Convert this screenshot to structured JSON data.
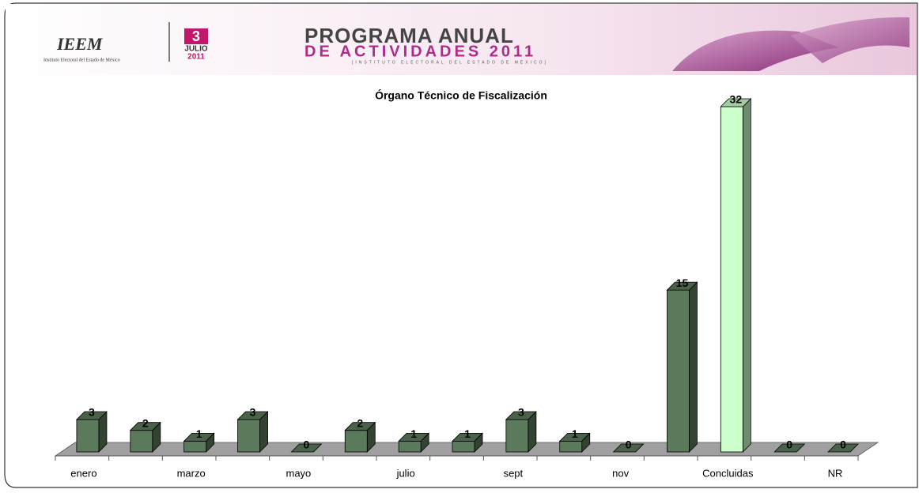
{
  "header": {
    "logo": "IEEM",
    "logo_subtitle": "Instituto Electoral del Estado de México",
    "day": "3",
    "month": "JULIO",
    "year": "2011",
    "program_line1": "PROGRAMA ANUAL",
    "program_line2": "DE ACTIVIDADES 2011",
    "program_line3": "[INSTITUTO ELECTORAL DEL ESTADO DE MÉXICO]"
  },
  "chart_data": {
    "type": "bar3d",
    "title": "Órgano Técnico de Fiscalización",
    "categories": [
      "enero",
      null,
      "marzo",
      null,
      "mayo",
      null,
      "julio",
      null,
      "sept",
      null,
      "nov",
      null,
      "Concluidas",
      null,
      "NR"
    ],
    "values": [
      3,
      2,
      1,
      3,
      0,
      2,
      1,
      1,
      3,
      1,
      0,
      15,
      32,
      0,
      0
    ],
    "colors": [
      "#5b7a5b",
      "#5b7a5b",
      "#5b7a5b",
      "#5b7a5b",
      "#5b7a5b",
      "#5b7a5b",
      "#5b7a5b",
      "#5b7a5b",
      "#5b7a5b",
      "#5b7a5b",
      "#5b7a5b",
      "#5b7a5b",
      "#ccffcc",
      "#5b7a5b",
      "#5b7a5b"
    ],
    "ylim": [
      0,
      32
    ]
  }
}
